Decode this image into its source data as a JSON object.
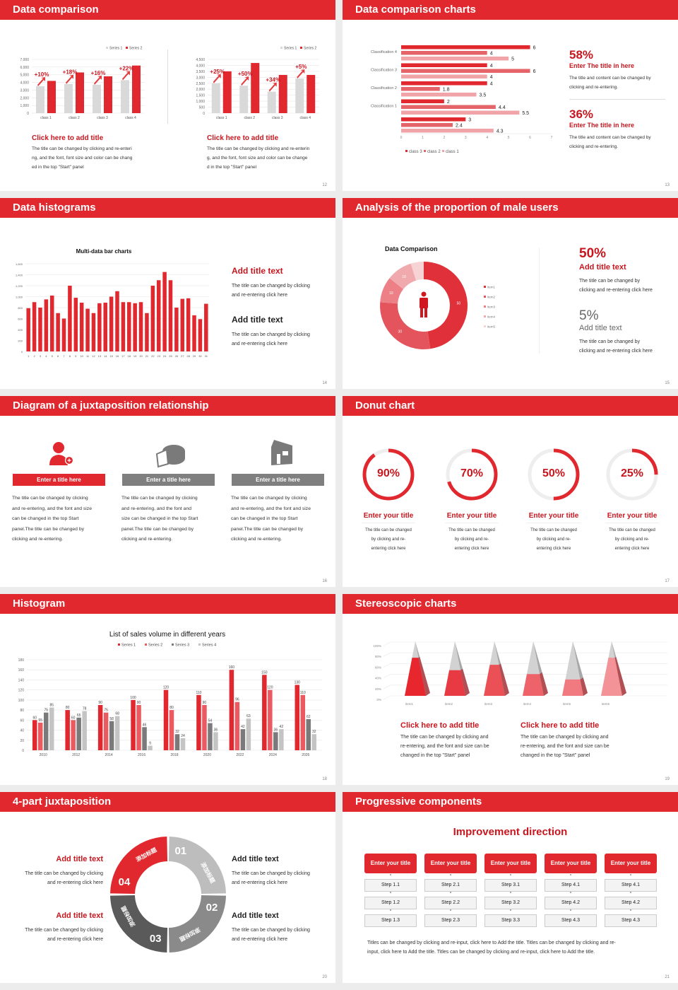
{
  "colors": {
    "accent": "#e0282e",
    "dark_red": "#c8161e",
    "gray": "#d5d5d5"
  },
  "s12": {
    "title": "Data comparison",
    "page": "12",
    "legend": [
      "Series 1",
      "Series 2"
    ],
    "card_title": "Click here to add title",
    "left_body": [
      "The title can be changed by clicking and re-enteri",
      "ng, and the font, font size and color can be chang",
      "ed in the top \"Start\" panel"
    ],
    "right_body": [
      "The title can be changed by clicking and re-enterin",
      "g, and the font, font size and color can be change",
      "d in the top \"Start\" panel"
    ]
  },
  "s13": {
    "title": "Data comparison charts",
    "page": "13",
    "stat1": "58%",
    "stat1_title": "Enter The title in here",
    "stat2": "36%",
    "stat2_title": "Enter The title in here",
    "body": [
      "The title and content can be changed by",
      "clicking and re-entering."
    ]
  },
  "s14": {
    "title": "Data histograms",
    "page": "14",
    "t1": "Add title text",
    "t2": "Add title text",
    "body": [
      "The title can be changed by clicking",
      "and re-entering click here"
    ]
  },
  "s15": {
    "title": "Analysis of the proportion of male users",
    "page": "15",
    "stat1": "50%",
    "t1": "Add title text",
    "stat2": "5%",
    "t2": "Add title text",
    "body": [
      "The title can be changed by",
      "clicking and re-entering click here"
    ],
    "icon": "male-person-icon"
  },
  "s16": {
    "title": "Diagram of a juxtaposition relationship",
    "page": "16",
    "cards": [
      {
        "icon": "user-add-icon",
        "label": "Enter a title here",
        "color": "#e0282e",
        "body": [
          "The title can be changed by clicking",
          "and re-entering, and the font and size",
          "can be changed in the top Start",
          "panel.The title can be changed by",
          "clicking and re-entering."
        ]
      },
      {
        "icon": "pie-chart-3d-icon",
        "label": "Enter a title here",
        "color": "#7f7f7f",
        "body": [
          "The title can be changed by clicking",
          "and re-entering, and the font and",
          "size can be changed in the top Start",
          "panel.The title can be changed by",
          "clicking and re-entering."
        ]
      },
      {
        "icon": "building-chart-icon",
        "label": "Enter a title here",
        "color": "#7f7f7f",
        "body": [
          "The title can be changed by clicking",
          "and re-entering, and the font and size",
          "can be changed in the top Start",
          "panel.The title can be changed by",
          "clicking and re-entering."
        ]
      }
    ]
  },
  "s17": {
    "title": "Donut chart",
    "page": "17",
    "items": [
      {
        "value": 90,
        "label": "90%",
        "title": "Enter your title"
      },
      {
        "value": 70,
        "label": "70%",
        "title": "Enter your title"
      },
      {
        "value": 50,
        "label": "50%",
        "title": "Enter your title"
      },
      {
        "value": 25,
        "label": "25%",
        "title": "Enter your title"
      }
    ],
    "body": [
      "The title can be changed",
      "by clicking and re-",
      "entering click here"
    ]
  },
  "s18": {
    "title": "Histogram",
    "page": "18"
  },
  "s19": {
    "title": "Stereoscopic charts",
    "page": "19",
    "card_title": "Click here to add title",
    "body": [
      "The title can be changed by clicking and",
      "re-entering, and the font and size can be",
      "changed in the top \"Start\" panel"
    ]
  },
  "s20": {
    "title": "4-part juxtaposition",
    "page": "20",
    "t": "Add title text",
    "body": [
      "The title can be changed by clicking",
      "and re-entering click here"
    ],
    "segments": [
      {
        "num": "01",
        "label": "添加标题"
      },
      {
        "num": "02",
        "label": "添加标题"
      },
      {
        "num": "03",
        "label": "添加标题"
      },
      {
        "num": "04",
        "label": "添加标题"
      }
    ]
  },
  "s21": {
    "title": "Progressive components",
    "page": "21",
    "heading": "Improvement direction",
    "columns": [
      {
        "title": "Enter your title",
        "steps": [
          "Step 1.1",
          "Step 1.2",
          "Step 1.3"
        ]
      },
      {
        "title": "Enter your title",
        "steps": [
          "Step 2.1",
          "Step 2.2",
          "Step 2.3"
        ]
      },
      {
        "title": "Enter your title",
        "steps": [
          "Step 3.1",
          "Step 3.2",
          "Step 3.3"
        ]
      },
      {
        "title": "Enter your title",
        "steps": [
          "Step 4.1",
          "Step 4.2",
          "Step 4.3"
        ]
      },
      {
        "title": "Enter your title",
        "steps": [
          "Step 4.1",
          "Step 4.2",
          "Step 4.3"
        ]
      }
    ],
    "footer": [
      "Titles can be changed by clicking and re-input, click here to Add the title. Titles can be changed by clicking and re-",
      "input, click here to Add the title. Titles can be changed by clicking and re-input, click here to Add the title."
    ]
  },
  "chart_data": [
    {
      "id": "s12a",
      "type": "bar",
      "categories": [
        "class 1",
        "class 2",
        "class 3",
        "class 4"
      ],
      "series": [
        {
          "name": "Series 1",
          "values": [
            3500,
            3800,
            3700,
            4300
          ]
        },
        {
          "name": "Series 2",
          "values": [
            4200,
            5300,
            4800,
            6200
          ]
        }
      ],
      "annotations": [
        "+10%",
        "+18%",
        "+16%",
        "+22%"
      ],
      "ylim": [
        0,
        7000
      ],
      "ystep": 1000,
      "legend": "top-right",
      "grid": true
    },
    {
      "id": "s12b",
      "type": "bar",
      "categories": [
        "class 1",
        "class 2",
        "class 3",
        "class 4"
      ],
      "series": [
        {
          "name": "Series 1",
          "values": [
            2500,
            2300,
            1800,
            2900
          ]
        },
        {
          "name": "Series 2",
          "values": [
            3500,
            4200,
            3200,
            3200
          ]
        }
      ],
      "annotations": [
        "+25%",
        "+50%",
        "+34%",
        "+5%"
      ],
      "ylim": [
        0,
        4500
      ],
      "ystep": 500,
      "legend": "top-right",
      "grid": true
    },
    {
      "id": "s13",
      "type": "bar",
      "orientation": "horizontal",
      "categories": [
        "Classification 4",
        "Classification 3",
        "Classification 2",
        "Classification 1",
        ""
      ],
      "series": [
        {
          "name": "class 3",
          "values": [
            6,
            4,
            4,
            2,
            3
          ]
        },
        {
          "name": "class 2",
          "values": [
            4,
            6,
            1.8,
            4.4,
            2.4
          ]
        },
        {
          "name": "class 1",
          "values": [
            5,
            4,
            3.5,
            5.5,
            4.3
          ]
        }
      ],
      "xlim": [
        0,
        7
      ],
      "legend": "bottom"
    },
    {
      "id": "s14",
      "type": "bar",
      "title": "Multi-data bar charts",
      "categories": [
        "1",
        "2",
        "3",
        "4",
        "5",
        "6",
        "7",
        "8",
        "9",
        "10",
        "11",
        "12",
        "13",
        "14",
        "15",
        "16",
        "17",
        "18",
        "19",
        "20",
        "21",
        "22",
        "23",
        "24",
        "25",
        "26",
        "27",
        "28",
        "29",
        "30",
        "31"
      ],
      "values": [
        790,
        900,
        800,
        950,
        1020,
        700,
        600,
        1200,
        980,
        890,
        780,
        700,
        880,
        890,
        1000,
        1100,
        900,
        900,
        880,
        900,
        700,
        1200,
        1300,
        1450,
        1300,
        800,
        960,
        970,
        660,
        590,
        870
      ],
      "ylim": [
        0,
        1600
      ],
      "ystep": 200,
      "grid": true
    },
    {
      "id": "s15",
      "type": "pie",
      "title": "Data Comparison",
      "categories": [
        "item1",
        "item2",
        "item3",
        "item4",
        "item5"
      ],
      "values": [
        50,
        30,
        10,
        10,
        5
      ],
      "labels": [
        "50",
        "30",
        "10",
        "10",
        ""
      ],
      "colors": [
        "#e0303a",
        "#e4545c",
        "#ec8086",
        "#f0a9ad",
        "#f7d3d5"
      ],
      "legend": "right"
    },
    {
      "id": "s18",
      "type": "bar",
      "title": "List of sales volume in different years",
      "categories": [
        "2010",
        "2012",
        "2014",
        "2016",
        "2018",
        "2020",
        "2022",
        "2024",
        "2026"
      ],
      "series": [
        {
          "name": "Series 1",
          "values": [
            60,
            80,
            90,
            100,
            120,
            110,
            160,
            150,
            130
          ],
          "color": "#e0282e"
        },
        {
          "name": "Series 2",
          "values": [
            55,
            60,
            75,
            90,
            80,
            90,
            96,
            120,
            110
          ],
          "color": "#ea5a60"
        },
        {
          "name": "Series 3",
          "values": [
            75,
            65,
            58,
            46,
            32,
            54,
            42,
            36,
            62
          ],
          "color": "#7a7a7a"
        },
        {
          "name": "Series 4",
          "values": [
            85,
            78,
            68,
            9,
            24,
            36,
            63,
            42,
            32
          ],
          "color": "#c4c4c4"
        }
      ],
      "ylim": [
        0,
        180
      ],
      "ystep": 20,
      "legend": "top",
      "grid": true
    },
    {
      "id": "s19",
      "type": "bar",
      "subtype": "3d-pyramid",
      "categories": [
        "item1",
        "item2",
        "item3",
        "item4",
        "item5",
        "item6"
      ],
      "values": [
        70,
        47,
        57,
        40,
        30,
        70
      ],
      "ylim": [
        0,
        100
      ],
      "yticks": [
        "0%",
        "20%",
        "40%",
        "60%",
        "80%",
        "100%"
      ]
    }
  ]
}
